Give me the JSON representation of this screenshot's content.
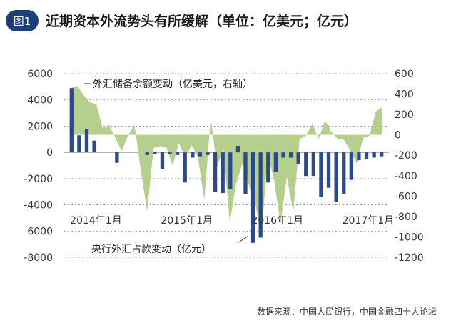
{
  "figure": {
    "badge": "图1",
    "title": "近期资本外流势头有所缓解（单位：亿美元；亿元）",
    "source": "数据来源：中国人民银行，中国金融四十人论坛"
  },
  "colors": {
    "badge_bg": "#1f3d7a",
    "bar": "#2a4a8c",
    "area": "#b5d08d",
    "axis_text": "#333333",
    "grid": "#888888",
    "title": "#1a1a1a"
  },
  "chart_data": {
    "type": "bar+area",
    "x_labels": [
      {
        "label": "2014年1月",
        "index": 0
      },
      {
        "label": "2015年1月",
        "index": 12
      },
      {
        "label": "2016年1月",
        "index": 24
      },
      {
        "label": "2017年1月",
        "index": 36
      }
    ],
    "left_axis": {
      "ticks": [
        6000,
        4000,
        2000,
        0,
        -2000,
        -4000,
        -6000,
        -8000
      ],
      "ylim": [
        -8000,
        6000
      ]
    },
    "right_axis": {
      "ticks": [
        600,
        400,
        200,
        0,
        -200,
        -400,
        -600,
        -800,
        -1000,
        -1200
      ],
      "ylim": [
        -1200,
        600
      ]
    },
    "series": [
      {
        "name": "外汇储备余额变动（亿美元，右轴）",
        "axis": "right",
        "kind": "area",
        "values": [
          460,
          480,
          390,
          320,
          300,
          60,
          100,
          -30,
          -160,
          0,
          100,
          -350,
          -750,
          -130,
          -110,
          -120,
          -300,
          -80,
          -220,
          -100,
          -220,
          -640,
          170,
          -320,
          -130,
          -860,
          -480,
          -280,
          -490,
          -660,
          -990,
          -190,
          -450,
          -870,
          -410,
          -760,
          -40,
          -10,
          110,
          -40,
          140,
          30,
          -40,
          -50,
          -160,
          -280,
          -30,
          -10,
          230,
          270
        ],
        "first_index": 0
      },
      {
        "name": "央行外汇占款变动（亿元）",
        "axis": "left",
        "kind": "bar",
        "values": [
          4900,
          1300,
          1800,
          900,
          0,
          0,
          -800,
          0,
          0,
          0,
          -200,
          -100,
          -1300,
          -100,
          -200,
          -2300,
          -400,
          -300,
          -200,
          -3000,
          -3100,
          -2800,
          500,
          -3200,
          -6900,
          -6500,
          -2300,
          -1500,
          -400,
          -400,
          -900,
          -1800,
          -1800,
          -3400,
          -2700,
          -3800,
          -3200,
          -2100,
          -600,
          -500,
          -400,
          -300
        ]
      }
    ],
    "legend_annotations": [
      {
        "label": "外汇储备余额变动（亿美元，右轴）",
        "series": 0
      },
      {
        "label": "央行外汇占款变动（亿元）",
        "series": 1
      }
    ]
  }
}
